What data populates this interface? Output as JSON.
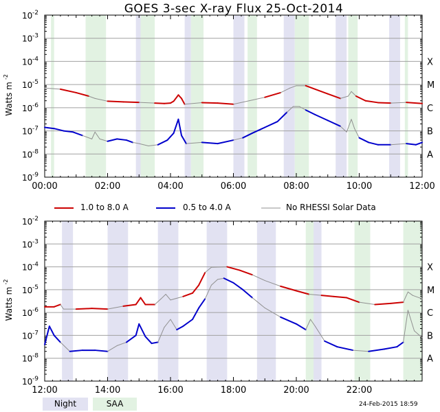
{
  "title": "GOES 3-sec X-ray Flux   25-Oct-2014",
  "legend": {
    "long_label": "1.0 to 8.0 A",
    "short_label": "0.5 to 4.0 A",
    "nodata_label": "No RHESSI Solar Data"
  },
  "boxes": {
    "night": "Night",
    "saa": "SAA"
  },
  "timestamp": "24-Feb-2015 18:59",
  "colors": {
    "long": "#cc0000",
    "short": "#0000cc",
    "nodata": "#909090",
    "night": "#e2e2f2",
    "saa": "#e2f2e2",
    "grid": "#a0a0a0"
  },
  "chart_data": [
    {
      "type": "line",
      "title": "GOES 3-sec X-ray Flux   25-Oct-2014",
      "ylabel": "Watts m",
      "ylabel_sup": "-2",
      "ylim_exp": [
        -9,
        -2
      ],
      "y_tick_labels": [
        {
          "exp": -2,
          "label": "10",
          "sup": "-2"
        },
        {
          "exp": -3,
          "label": "10",
          "sup": "-3"
        },
        {
          "exp": -4,
          "label": "10",
          "sup": "-4"
        },
        {
          "exp": -5,
          "label": "10",
          "sup": "-5"
        },
        {
          "exp": -6,
          "label": "10",
          "sup": "-6"
        },
        {
          "exp": -7,
          "label": "10",
          "sup": "-7"
        },
        {
          "exp": -8,
          "label": "10",
          "sup": "-8"
        },
        {
          "exp": -9,
          "label": "10",
          "sup": "-9"
        }
      ],
      "class_labels": [
        {
          "exp": -4,
          "label": "X"
        },
        {
          "exp": -5,
          "label": "M"
        },
        {
          "exp": -6,
          "label": "C"
        },
        {
          "exp": -7,
          "label": "B"
        },
        {
          "exp": -8,
          "label": "A"
        }
      ],
      "xlim_hours": [
        0,
        12
      ],
      "x_ticks": [
        {
          "h": 0,
          "label": "00:00"
        },
        {
          "h": 2,
          "label": "02:00"
        },
        {
          "h": 4,
          "label": "04:00"
        },
        {
          "h": 6,
          "label": "06:00"
        },
        {
          "h": 8,
          "label": "08:00"
        },
        {
          "h": 10,
          "label": "10:00"
        },
        {
          "h": 12,
          "label": "12:00"
        }
      ],
      "night_spans": [
        [
          2.9,
          3.1
        ],
        [
          4.45,
          4.65
        ],
        [
          7.6,
          7.95
        ],
        [
          9.25,
          9.6
        ],
        [
          10.95,
          11.3
        ],
        [
          6.0,
          6.35
        ]
      ],
      "saa_spans": [
        [
          0.2,
          0.3
        ],
        [
          1.3,
          1.95
        ],
        [
          3.05,
          3.5
        ],
        [
          4.65,
          5.05
        ],
        [
          6.45,
          6.75
        ],
        [
          7.95,
          8.4
        ],
        [
          9.65,
          9.95
        ],
        [
          11.45,
          11.55
        ]
      ],
      "series": [
        {
          "name": "1.0 to 8.0 A",
          "color_key": "long",
          "points": [
            [
              0,
              -5.15
            ],
            [
              0.5,
              -5.2
            ],
            [
              1.0,
              -5.35
            ],
            [
              1.4,
              -5.5
            ],
            [
              1.6,
              -5.6
            ],
            [
              2.0,
              -5.72
            ],
            [
              2.5,
              -5.75
            ],
            [
              3.0,
              -5.77
            ],
            [
              3.5,
              -5.8
            ],
            [
              3.8,
              -5.82
            ],
            [
              4.0,
              -5.8
            ],
            [
              4.1,
              -5.72
            ],
            [
              4.25,
              -5.45
            ],
            [
              4.35,
              -5.6
            ],
            [
              4.45,
              -5.85
            ],
            [
              5.0,
              -5.78
            ],
            [
              5.5,
              -5.8
            ],
            [
              6.0,
              -5.85
            ],
            [
              6.5,
              -5.7
            ],
            [
              7.0,
              -5.55
            ],
            [
              7.5,
              -5.35
            ],
            [
              7.8,
              -5.15
            ],
            [
              8.0,
              -5.05
            ],
            [
              8.3,
              -5.05
            ],
            [
              8.6,
              -5.2
            ],
            [
              9.0,
              -5.4
            ],
            [
              9.4,
              -5.6
            ],
            [
              9.65,
              -5.5
            ],
            [
              9.75,
              -5.3
            ],
            [
              9.9,
              -5.5
            ],
            [
              10.2,
              -5.7
            ],
            [
              10.6,
              -5.78
            ],
            [
              11.0,
              -5.8
            ],
            [
              11.5,
              -5.77
            ],
            [
              12.0,
              -5.82
            ]
          ]
        },
        {
          "name": "0.5 to 4.0 A",
          "color_key": "short",
          "points": [
            [
              0,
              -6.85
            ],
            [
              0.3,
              -6.9
            ],
            [
              0.6,
              -7.0
            ],
            [
              0.9,
              -7.05
            ],
            [
              1.2,
              -7.2
            ],
            [
              1.5,
              -7.35
            ],
            [
              1.6,
              -7.05
            ],
            [
              1.75,
              -7.35
            ],
            [
              2.0,
              -7.45
            ],
            [
              2.3,
              -7.35
            ],
            [
              2.6,
              -7.4
            ],
            [
              2.8,
              -7.5
            ],
            [
              3.0,
              -7.55
            ],
            [
              3.3,
              -7.65
            ],
            [
              3.6,
              -7.6
            ],
            [
              3.9,
              -7.4
            ],
            [
              4.1,
              -7.1
            ],
            [
              4.25,
              -6.5
            ],
            [
              4.35,
              -7.2
            ],
            [
              4.5,
              -7.55
            ],
            [
              5.0,
              -7.5
            ],
            [
              5.5,
              -7.55
            ],
            [
              6.0,
              -7.4
            ],
            [
              6.3,
              -7.3
            ],
            [
              6.6,
              -7.1
            ],
            [
              7.0,
              -6.85
            ],
            [
              7.4,
              -6.6
            ],
            [
              7.7,
              -6.2
            ],
            [
              7.9,
              -5.95
            ],
            [
              8.1,
              -5.95
            ],
            [
              8.3,
              -6.1
            ],
            [
              8.6,
              -6.3
            ],
            [
              9.0,
              -6.55
            ],
            [
              9.4,
              -6.8
            ],
            [
              9.6,
              -7.05
            ],
            [
              9.75,
              -6.5
            ],
            [
              9.85,
              -6.9
            ],
            [
              10.0,
              -7.3
            ],
            [
              10.3,
              -7.5
            ],
            [
              10.6,
              -7.6
            ],
            [
              11.0,
              -7.6
            ],
            [
              11.5,
              -7.55
            ],
            [
              11.8,
              -7.6
            ],
            [
              12.0,
              -7.5
            ]
          ]
        }
      ]
    },
    {
      "type": "line",
      "ylabel": "Watts m",
      "ylabel_sup": "-2",
      "ylim_exp": [
        -9,
        -2
      ],
      "y_tick_labels": [
        {
          "exp": -2,
          "label": "10",
          "sup": "-2"
        },
        {
          "exp": -3,
          "label": "10",
          "sup": "-3"
        },
        {
          "exp": -4,
          "label": "10",
          "sup": "-4"
        },
        {
          "exp": -5,
          "label": "10",
          "sup": "-5"
        },
        {
          "exp": -6,
          "label": "10",
          "sup": "-6"
        },
        {
          "exp": -7,
          "label": "10",
          "sup": "-7"
        },
        {
          "exp": -8,
          "label": "10",
          "sup": "-8"
        },
        {
          "exp": -9,
          "label": "10",
          "sup": "-9"
        }
      ],
      "class_labels": [
        {
          "exp": -4,
          "label": "X"
        },
        {
          "exp": -5,
          "label": "M"
        },
        {
          "exp": -6,
          "label": "C"
        },
        {
          "exp": -7,
          "label": "B"
        },
        {
          "exp": -8,
          "label": "A"
        }
      ],
      "xlim_hours": [
        12,
        24
      ],
      "x_ticks": [
        {
          "h": 12,
          "label": "12:00"
        },
        {
          "h": 14,
          "label": "14:00"
        },
        {
          "h": 16,
          "label": "16:00"
        },
        {
          "h": 18,
          "label": "18:00"
        },
        {
          "h": 20,
          "label": "20:00"
        },
        {
          "h": 22,
          "label": "22:00"
        }
      ],
      "night_spans": [
        [
          12.55,
          12.9
        ],
        [
          14.0,
          14.65
        ],
        [
          15.6,
          16.25
        ],
        [
          17.15,
          17.8
        ],
        [
          18.75,
          19.35
        ],
        [
          20.35,
          20.8
        ],
        [
          21.95,
          22.25
        ]
      ],
      "saa_spans": [
        [
          20.3,
          20.55
        ],
        [
          21.85,
          22.35
        ],
        [
          23.4,
          24.0
        ]
      ],
      "series": [
        {
          "name": "1.0 to 8.0 A",
          "color_key": "long",
          "points": [
            [
              12,
              -5.75
            ],
            [
              12.3,
              -5.75
            ],
            [
              12.5,
              -5.65
            ],
            [
              12.6,
              -5.85
            ],
            [
              13.0,
              -5.85
            ],
            [
              13.5,
              -5.82
            ],
            [
              14.0,
              -5.85
            ],
            [
              14.5,
              -5.72
            ],
            [
              14.9,
              -5.65
            ],
            [
              15.05,
              -5.35
            ],
            [
              15.2,
              -5.65
            ],
            [
              15.5,
              -5.65
            ],
            [
              15.7,
              -5.4
            ],
            [
              15.85,
              -5.2
            ],
            [
              16.0,
              -5.45
            ],
            [
              16.4,
              -5.3
            ],
            [
              16.7,
              -5.15
            ],
            [
              16.9,
              -4.8
            ],
            [
              17.1,
              -4.25
            ],
            [
              17.3,
              -4.02
            ],
            [
              17.8,
              -4.0
            ],
            [
              18.2,
              -4.15
            ],
            [
              18.6,
              -4.35
            ],
            [
              19.0,
              -4.6
            ],
            [
              19.5,
              -4.85
            ],
            [
              20.0,
              -5.05
            ],
            [
              20.4,
              -5.2
            ],
            [
              20.8,
              -5.25
            ],
            [
              21.2,
              -5.3
            ],
            [
              21.6,
              -5.35
            ],
            [
              22.0,
              -5.55
            ],
            [
              22.5,
              -5.65
            ],
            [
              23.0,
              -5.6
            ],
            [
              23.4,
              -5.55
            ],
            [
              23.55,
              -5.1
            ],
            [
              23.7,
              -5.25
            ],
            [
              24.0,
              -5.4
            ]
          ]
        },
        {
          "name": "0.5 to 4.0 A",
          "color_key": "short",
          "points": [
            [
              12,
              -7.4
            ],
            [
              12.15,
              -6.6
            ],
            [
              12.3,
              -7.0
            ],
            [
              12.5,
              -7.3
            ],
            [
              12.8,
              -7.7
            ],
            [
              13.2,
              -7.65
            ],
            [
              13.6,
              -7.65
            ],
            [
              14.0,
              -7.7
            ],
            [
              14.3,
              -7.45
            ],
            [
              14.6,
              -7.3
            ],
            [
              14.9,
              -7.0
            ],
            [
              15.0,
              -6.5
            ],
            [
              15.2,
              -7.05
            ],
            [
              15.4,
              -7.35
            ],
            [
              15.6,
              -7.3
            ],
            [
              15.8,
              -6.65
            ],
            [
              16.0,
              -6.3
            ],
            [
              16.2,
              -6.75
            ],
            [
              16.4,
              -6.6
            ],
            [
              16.7,
              -6.3
            ],
            [
              16.9,
              -5.8
            ],
            [
              17.1,
              -5.4
            ],
            [
              17.3,
              -4.8
            ],
            [
              17.5,
              -4.55
            ],
            [
              17.7,
              -4.5
            ],
            [
              18.0,
              -4.7
            ],
            [
              18.3,
              -5.0
            ],
            [
              18.6,
              -5.35
            ],
            [
              19.0,
              -5.8
            ],
            [
              19.5,
              -6.2
            ],
            [
              20.0,
              -6.5
            ],
            [
              20.3,
              -6.75
            ],
            [
              20.45,
              -6.3
            ],
            [
              20.6,
              -6.6
            ],
            [
              20.9,
              -7.25
            ],
            [
              21.3,
              -7.5
            ],
            [
              21.8,
              -7.65
            ],
            [
              22.3,
              -7.7
            ],
            [
              22.8,
              -7.6
            ],
            [
              23.2,
              -7.5
            ],
            [
              23.4,
              -7.3
            ],
            [
              23.55,
              -5.9
            ],
            [
              23.75,
              -6.8
            ],
            [
              24.0,
              -7.1
            ]
          ]
        }
      ]
    }
  ]
}
